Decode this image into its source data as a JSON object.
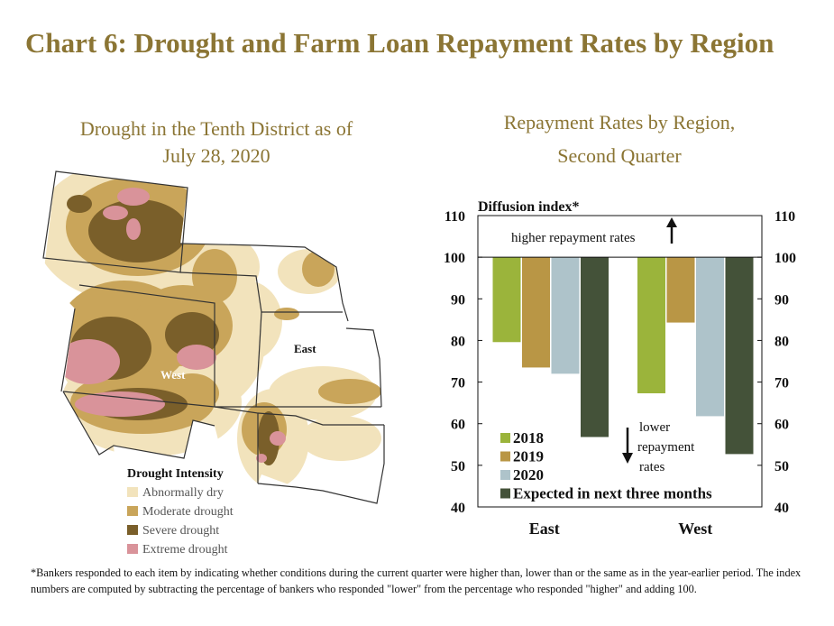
{
  "title": "Chart 6: Drought and Farm Loan Repayment Rates by Region",
  "map_panel": {
    "title_line1": "Drought in the Tenth District as of",
    "title_line2": "July 28, 2020",
    "region_labels": {
      "west": "West",
      "east": "East"
    },
    "legend": {
      "title": "Drought Intensity",
      "items": [
        {
          "label": "Abnormally dry",
          "color": "#F2E3BC"
        },
        {
          "label": "Moderate drought",
          "color": "#C9A55A"
        },
        {
          "label": "Severe drought",
          "color": "#7A5F2A"
        },
        {
          "label": "Extreme drought",
          "color": "#D9939A"
        }
      ]
    }
  },
  "chart_panel": {
    "title_line1": "Repayment Rates by Region,",
    "title_line2": "Second Quarter"
  },
  "chart_data": {
    "type": "bar",
    "ylabel": "Diffusion index*",
    "categories": [
      "East",
      "West"
    ],
    "ylim": [
      40,
      110
    ],
    "yticks": [
      40,
      50,
      60,
      70,
      80,
      90,
      100,
      110
    ],
    "baseline": 100,
    "series": [
      {
        "name": "2018",
        "color": "#9BB43B",
        "values": [
          79.6,
          67.3
        ]
      },
      {
        "name": "2019",
        "color": "#B99645",
        "values": [
          73.5,
          84.3
        ]
      },
      {
        "name": "2020",
        "color": "#AEC3CA",
        "values": [
          72.0,
          61.8
        ]
      },
      {
        "name": "Expected in next three months",
        "color": "#445239",
        "values": [
          56.8,
          52.7
        ]
      }
    ],
    "annotations": {
      "higher": "higher repayment rates",
      "lower_lines": [
        "lower",
        "repayment",
        "rates"
      ]
    }
  },
  "footnote": "*Bankers responded to each item by indicating whether conditions during the current quarter were higher than, lower than or the same as in the year-earlier period. The index numbers are computed by subtracting the percentage of bankers who responded \"lower\" from the percentage who responded \"higher\" and adding 100."
}
